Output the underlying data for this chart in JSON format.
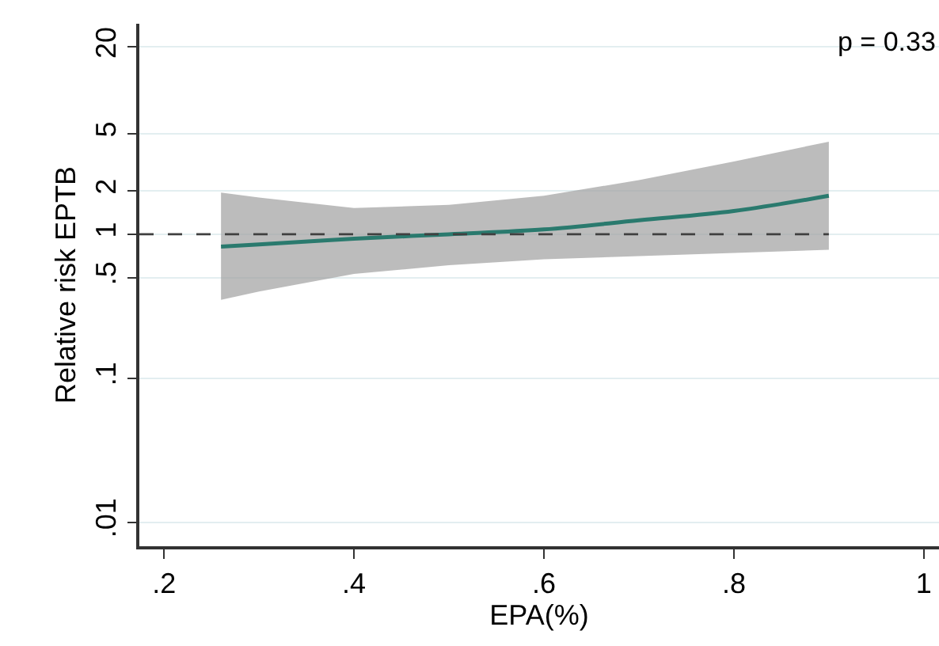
{
  "chart_data": {
    "type": "line",
    "xlabel": "EPA(%)",
    "ylabel": "Relative risk EPTB",
    "annotations": [
      "p = 0.33"
    ],
    "x": [
      0.26,
      0.3,
      0.4,
      0.5,
      0.6,
      0.7,
      0.8,
      0.9
    ],
    "series": [
      {
        "color": "#2a7a6e",
        "values": [
          0.82,
          0.85,
          0.93,
          1.0,
          1.08,
          1.25,
          1.45,
          1.85
        ],
        "lower": [
          0.35,
          0.4,
          0.53,
          0.61,
          0.67,
          0.71,
          0.74,
          0.78
        ],
        "upper": [
          1.95,
          1.8,
          1.52,
          1.6,
          1.85,
          2.38,
          3.2,
          4.4
        ]
      }
    ],
    "log": "y",
    "xlim": [
      0.174,
      1.016
    ],
    "ylim": [
      0.0068,
      29
    ],
    "xticks": [
      {
        "value": 0.2,
        "label": ".2"
      },
      {
        "value": 0.4,
        "label": ".4"
      },
      {
        "value": 0.6,
        "label": ".6"
      },
      {
        "value": 0.8,
        "label": ".8"
      },
      1
    ],
    "yticks": [
      {
        "value": 0.01,
        "label": ".01"
      },
      {
        "value": 0.1,
        "label": ".1"
      },
      {
        "value": 0.5,
        "label": ".5"
      },
      1,
      2,
      5,
      20
    ],
    "ref_lines": [
      {
        "axis": "y",
        "value": 1,
        "line_style": "dashed",
        "color": "#404040"
      }
    ],
    "grid": "y"
  }
}
